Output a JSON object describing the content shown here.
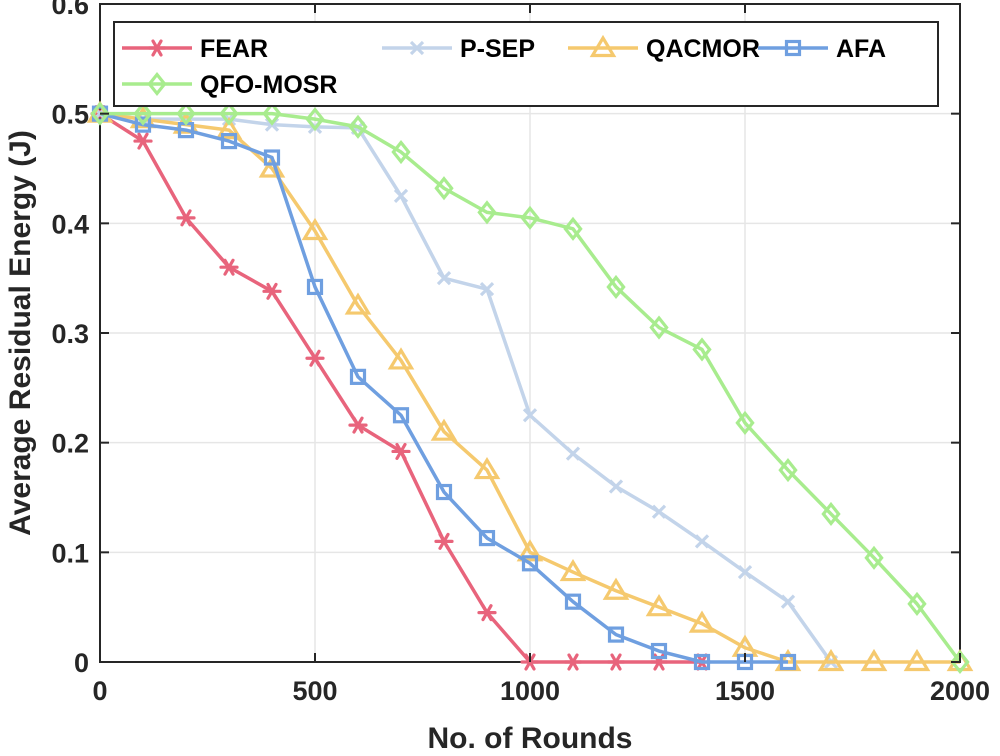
{
  "chart_data": {
    "type": "line",
    "title": "",
    "xlabel": "No. of Rounds",
    "ylabel": "Average Residual Energy (J)",
    "xlim": [
      0,
      2000
    ],
    "ylim": [
      0,
      0.6
    ],
    "xticks": [
      0,
      500,
      1000,
      1500,
      2000
    ],
    "yticks": [
      0,
      0.1,
      0.2,
      0.3,
      0.4,
      0.5,
      0.6
    ],
    "xtick_labels": [
      "0",
      "500",
      "1000",
      "1500",
      "2000"
    ],
    "ytick_labels": [
      "0",
      "0.1",
      "0.2",
      "0.3",
      "0.4",
      "0.5",
      "0.6"
    ],
    "grid": true,
    "legend_position": "top",
    "series": [
      {
        "name": "FEAR",
        "color": "#e8647c",
        "marker": "asterisk",
        "x": [
          0,
          100,
          200,
          300,
          400,
          500,
          600,
          700,
          800,
          900,
          1000,
          1100,
          1200,
          1300,
          1400
        ],
        "y": [
          0.5,
          0.475,
          0.405,
          0.36,
          0.338,
          0.277,
          0.216,
          0.192,
          0.11,
          0.045,
          0,
          0,
          0,
          0,
          0
        ]
      },
      {
        "name": "P-SEP",
        "color": "#c3d4ea",
        "marker": "x",
        "x": [
          0,
          100,
          200,
          300,
          400,
          500,
          600,
          700,
          800,
          900,
          1000,
          1100,
          1200,
          1300,
          1400,
          1500,
          1600,
          1700
        ],
        "y": [
          0.5,
          0.495,
          0.495,
          0.495,
          0.49,
          0.488,
          0.487,
          0.425,
          0.35,
          0.34,
          0.225,
          0.19,
          0.16,
          0.137,
          0.11,
          0.082,
          0.055,
          0
        ]
      },
      {
        "name": "QACMOR",
        "color": "#f5c96e",
        "marker": "triangle",
        "x": [
          0,
          100,
          200,
          300,
          400,
          500,
          600,
          700,
          800,
          900,
          1000,
          1100,
          1200,
          1300,
          1400,
          1500,
          1600,
          1700,
          1800,
          1900,
          2000
        ],
        "y": [
          0.5,
          0.495,
          0.49,
          0.485,
          0.45,
          0.393,
          0.325,
          0.275,
          0.21,
          0.175,
          0.1,
          0.082,
          0.065,
          0.05,
          0.035,
          0.013,
          0,
          0,
          0,
          0,
          0
        ]
      },
      {
        "name": "AFA",
        "color": "#6f9fe0",
        "marker": "square",
        "x": [
          0,
          100,
          200,
          300,
          400,
          500,
          600,
          700,
          800,
          900,
          1000,
          1100,
          1200,
          1300,
          1400,
          1500,
          1600
        ],
        "y": [
          0.5,
          0.49,
          0.485,
          0.475,
          0.46,
          0.342,
          0.26,
          0.225,
          0.155,
          0.113,
          0.09,
          0.055,
          0.025,
          0.01,
          0,
          0,
          0
        ]
      },
      {
        "name": "QFO-MOSR",
        "color": "#a8ec8e",
        "marker": "diamond",
        "x": [
          0,
          100,
          200,
          300,
          400,
          500,
          600,
          700,
          800,
          900,
          1000,
          1100,
          1200,
          1300,
          1400,
          1500,
          1600,
          1700,
          1800,
          1900,
          2000
        ],
        "y": [
          0.5,
          0.5,
          0.5,
          0.5,
          0.5,
          0.495,
          0.488,
          0.465,
          0.432,
          0.41,
          0.405,
          0.395,
          0.342,
          0.305,
          0.285,
          0.218,
          0.175,
          0.135,
          0.095,
          0.053,
          0
        ]
      }
    ]
  }
}
